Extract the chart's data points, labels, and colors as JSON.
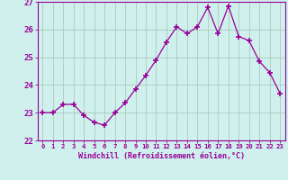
{
  "x": [
    0,
    1,
    2,
    3,
    4,
    5,
    6,
    7,
    8,
    9,
    10,
    11,
    12,
    13,
    14,
    15,
    16,
    17,
    18,
    19,
    20,
    21,
    22,
    23
  ],
  "y": [
    23.0,
    23.0,
    23.3,
    23.3,
    22.9,
    22.65,
    22.55,
    23.0,
    23.35,
    23.85,
    24.35,
    24.9,
    25.55,
    26.1,
    25.85,
    26.1,
    26.8,
    25.85,
    26.85,
    25.75,
    25.6,
    24.85,
    24.45,
    23.7
  ],
  "line_color": "#990099",
  "marker": "+",
  "marker_size": 4,
  "marker_lw": 1.2,
  "bg_color": "#cff0ec",
  "grid_color": "#aaccbb",
  "xlabel": "Windchill (Refroidissement éolien,°C)",
  "xlabel_color": "#990099",
  "tick_color": "#990099",
  "axis_color": "#990099",
  "ylim": [
    22,
    27
  ],
  "yticks": [
    22,
    23,
    24,
    25,
    26,
    27
  ],
  "xlim": [
    -0.5,
    23.5
  ],
  "xticks": [
    0,
    1,
    2,
    3,
    4,
    5,
    6,
    7,
    8,
    9,
    10,
    11,
    12,
    13,
    14,
    15,
    16,
    17,
    18,
    19,
    20,
    21,
    22,
    23
  ],
  "xtick_labels": [
    "0",
    "1",
    "2",
    "3",
    "4",
    "5",
    "6",
    "7",
    "8",
    "9",
    "10",
    "11",
    "12",
    "13",
    "14",
    "15",
    "16",
    "17",
    "18",
    "19",
    "20",
    "21",
    "22",
    "23"
  ]
}
